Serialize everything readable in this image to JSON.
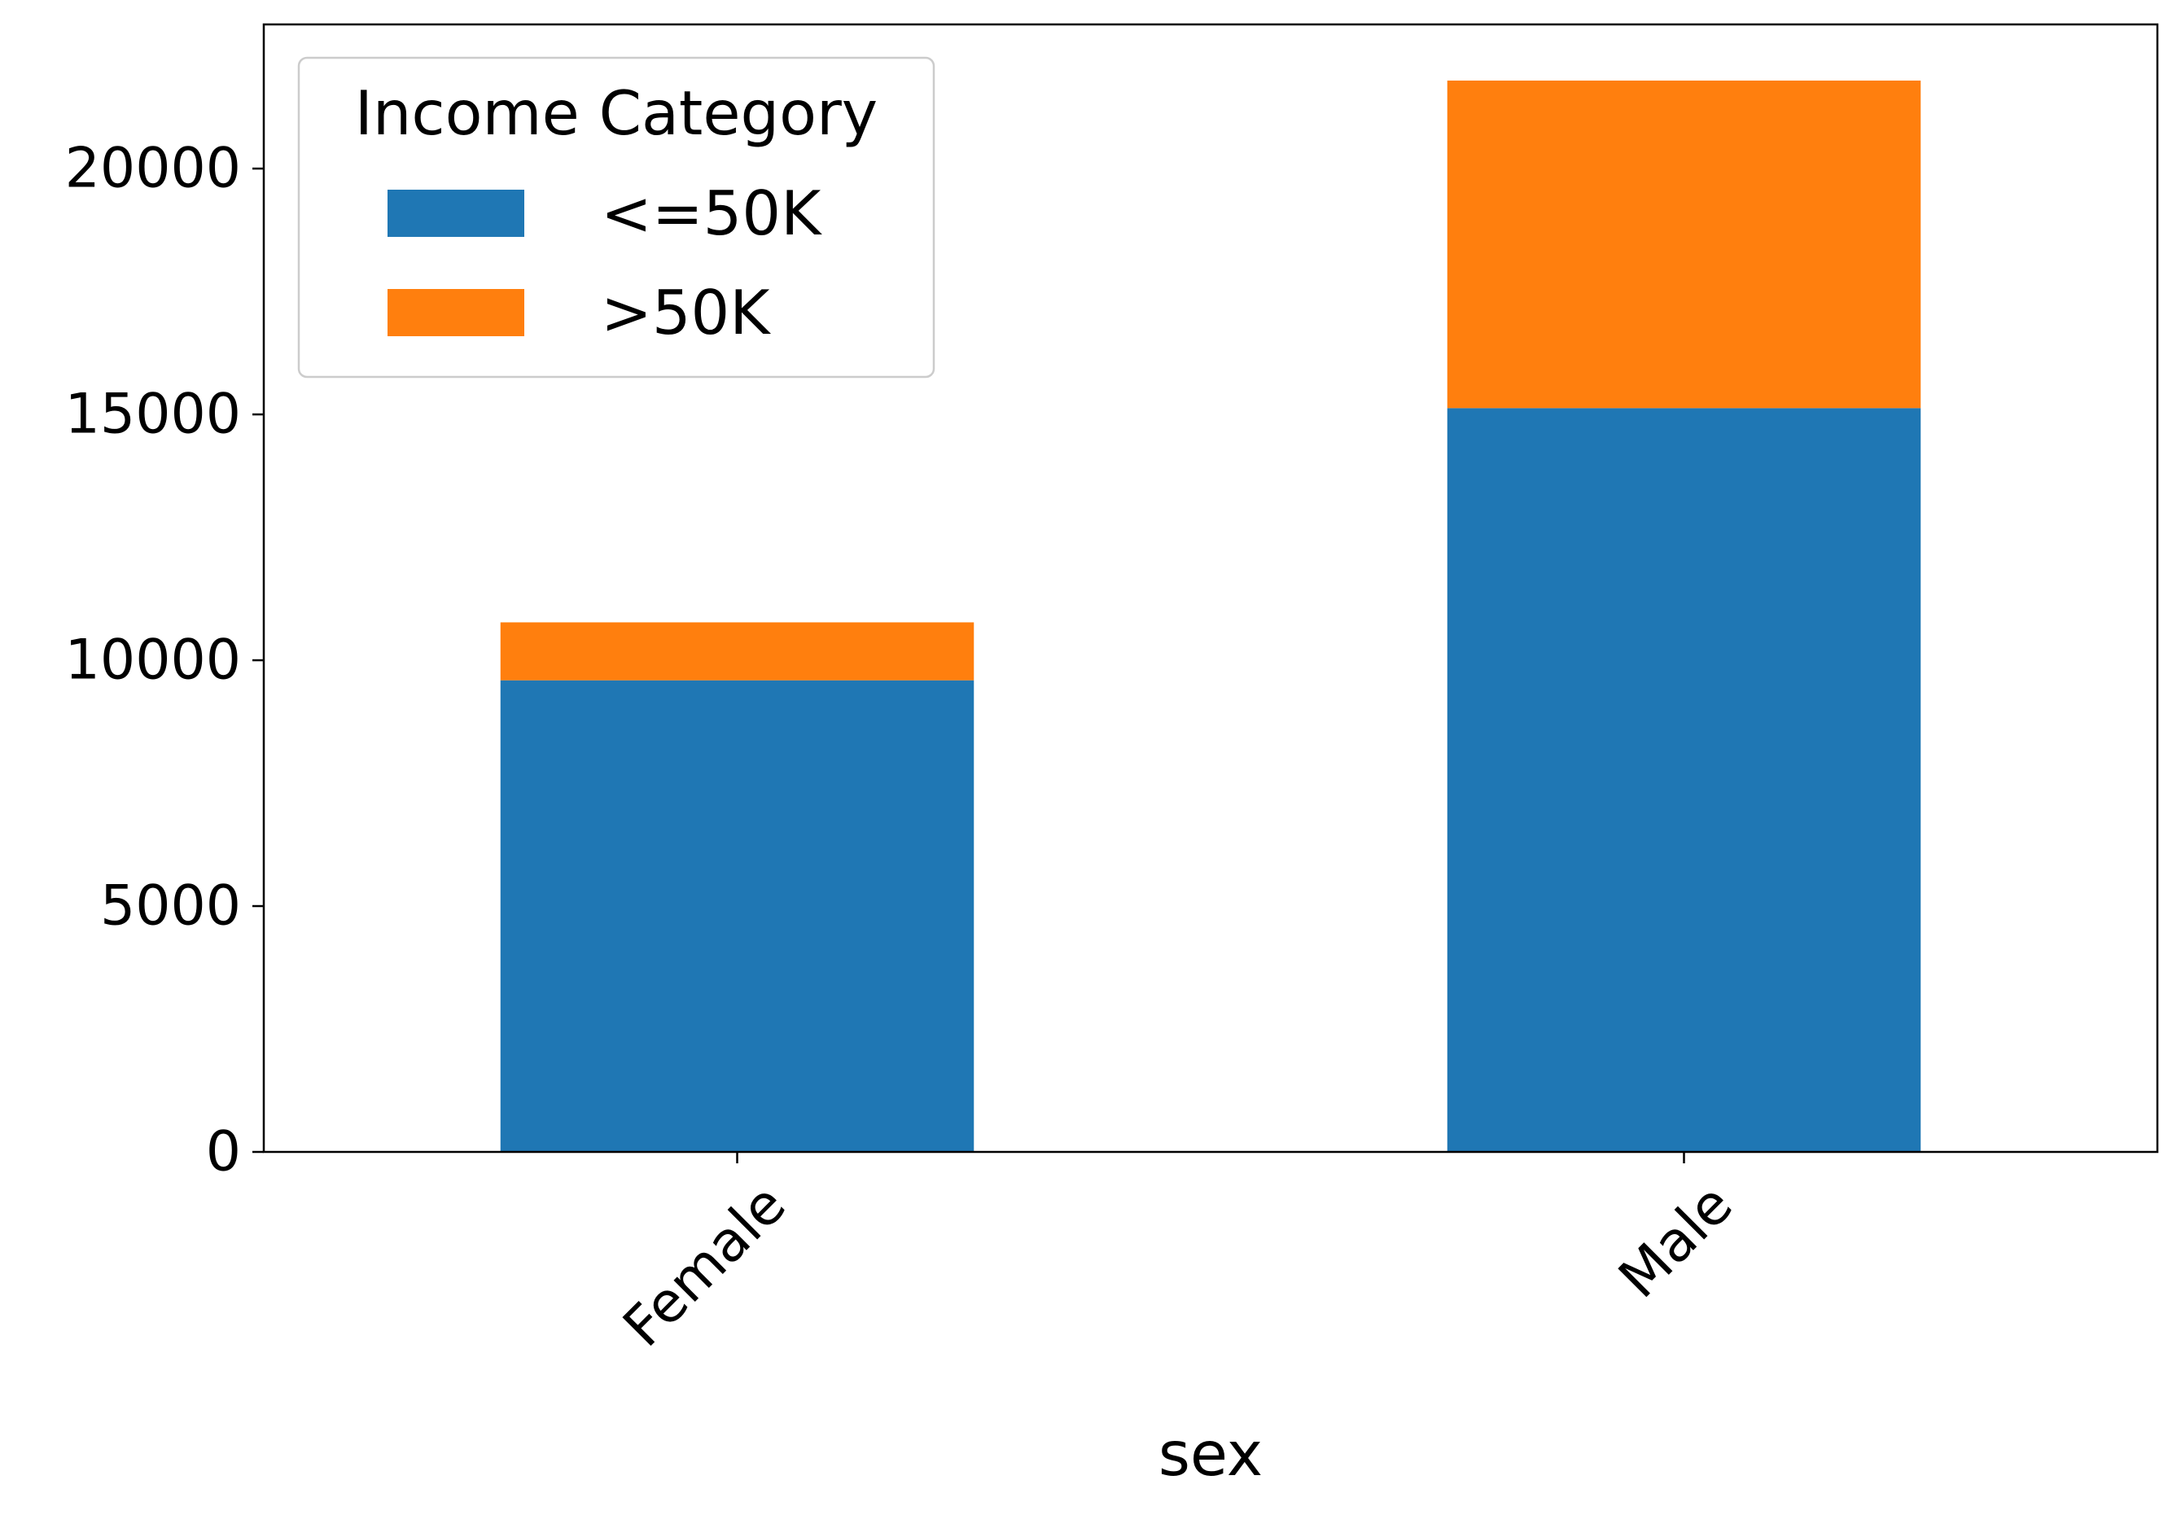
{
  "chart_data": {
    "type": "bar",
    "stacked": true,
    "title": "",
    "xlabel": "sex",
    "ylabel": "",
    "categories": [
      "Female",
      "Male"
    ],
    "series": [
      {
        "name": "<=50K",
        "values": [
          9592,
          15128
        ],
        "color": "#1f77b4"
      },
      {
        "name": ">50K",
        "values": [
          1179,
          6662
        ],
        "color": "#ff7f0e"
      }
    ],
    "ylim": [
      0,
      22932
    ],
    "yticks": [
      0,
      5000,
      10000,
      15000,
      20000
    ],
    "ytick_labels": [
      "0",
      "5000",
      "10000",
      "15000",
      "20000"
    ],
    "xtick_rotation": -45,
    "grid": false,
    "legend": {
      "title": "Income Category",
      "placement": "top-left"
    }
  }
}
